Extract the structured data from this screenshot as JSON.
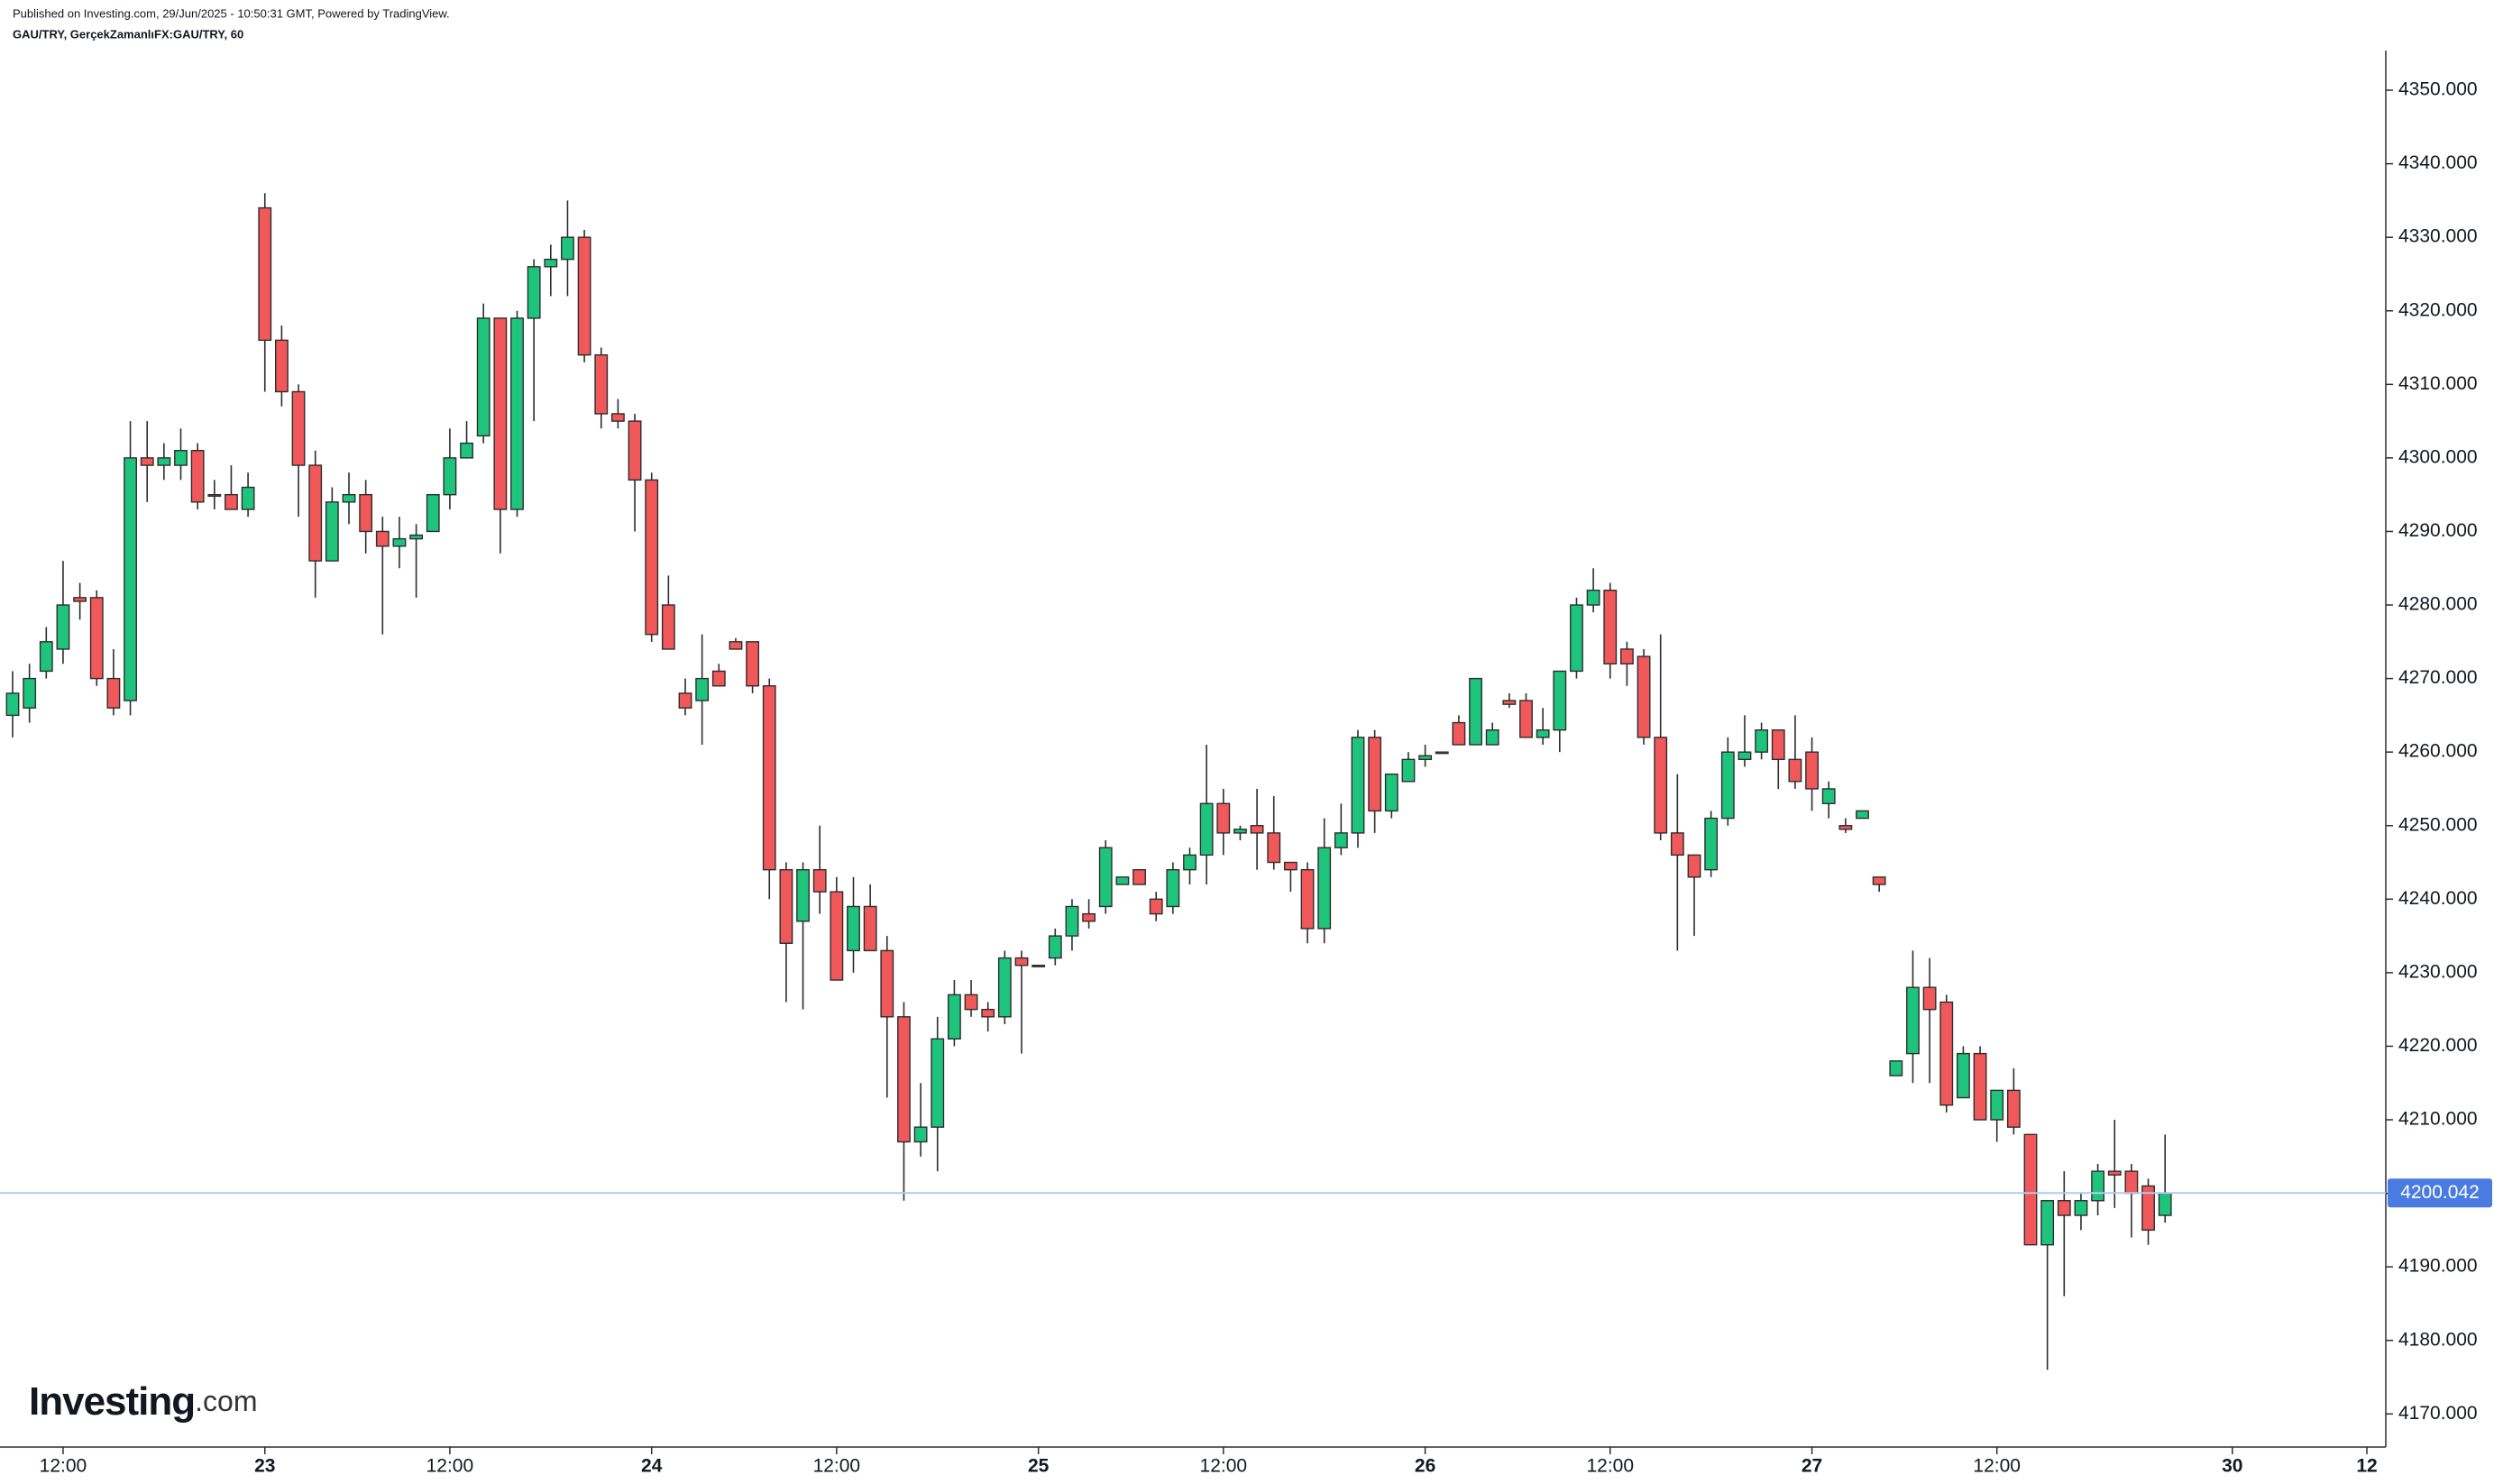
{
  "chart_data": {
    "type": "candlestick",
    "source": "Published on Investing.com, 29/Jun/2025 - 10:50:31 GMT, Powered by TradingView.",
    "title": "GAU/TRY, GerçekZamanlıFX:GAU/TRY, 60",
    "logo": {
      "name": "Investing",
      "suffix": ".com"
    },
    "up_color": "#1fc47c",
    "down_color": "#f0585a",
    "border_color": "#2d2d2d",
    "last_price": {
      "value": 4200.042,
      "label": "4200.042",
      "color": "#4a7be0",
      "line_color": "#b3c9ef"
    },
    "ylim": [
      4165.5,
      4355.4
    ],
    "yticks": [
      {
        "value": 4170,
        "label": "4170.000"
      },
      {
        "value": 4180,
        "label": "4180.000"
      },
      {
        "value": 4190,
        "label": "4190.000"
      },
      {
        "value": 4200,
        "label": "4200.000"
      },
      {
        "value": 4210,
        "label": "4210.000"
      },
      {
        "value": 4220,
        "label": "4220.000"
      },
      {
        "value": 4230,
        "label": "4230.000"
      },
      {
        "value": 4240,
        "label": "4240.000"
      },
      {
        "value": 4250,
        "label": "4250.000"
      },
      {
        "value": 4260,
        "label": "4260.000"
      },
      {
        "value": 4270,
        "label": "4270.000"
      },
      {
        "value": 4280,
        "label": "4280.000"
      },
      {
        "value": 4290,
        "label": "4290.000"
      },
      {
        "value": 4300,
        "label": "4300.000"
      },
      {
        "value": 4310,
        "label": "4310.000"
      },
      {
        "value": 4320,
        "label": "4320.000"
      },
      {
        "value": 4330,
        "label": "4330.000"
      },
      {
        "value": 4340,
        "label": "4340.000"
      },
      {
        "value": 4350,
        "label": "4350.000"
      }
    ],
    "categories": [
      null,
      null,
      null,
      "12:00",
      null,
      null,
      null,
      null,
      null,
      null,
      null,
      null,
      null,
      null,
      null,
      "23",
      null,
      null,
      null,
      null,
      null,
      null,
      null,
      null,
      null,
      null,
      "12:00",
      null,
      null,
      null,
      null,
      null,
      null,
      null,
      null,
      null,
      null,
      null,
      "24",
      null,
      null,
      null,
      null,
      null,
      null,
      null,
      null,
      null,
      null,
      "12:00",
      null,
      null,
      null,
      null,
      null,
      null,
      null,
      null,
      null,
      null,
      null,
      "25",
      null,
      null,
      null,
      null,
      null,
      null,
      null,
      null,
      null,
      null,
      "12:00",
      null,
      null,
      null,
      null,
      null,
      null,
      null,
      null,
      null,
      null,
      null,
      "26",
      null,
      null,
      null,
      null,
      null,
      null,
      null,
      null,
      null,
      null,
      "12:00",
      null,
      null,
      null,
      null,
      null,
      null,
      null,
      null,
      null,
      null,
      null,
      "27",
      null,
      null,
      null,
      null,
      null,
      null,
      null,
      null,
      null,
      null,
      "12:00",
      null,
      null,
      null,
      null,
      null,
      null,
      null,
      null,
      null,
      null,
      null,
      null,
      null,
      "30",
      null,
      null,
      null,
      null,
      null,
      null,
      null,
      "12"
    ],
    "open": [
      4265,
      4266,
      4271,
      4274,
      4281,
      4281,
      4270,
      4267,
      4300,
      4299,
      4299,
      4301,
      4295,
      4295,
      4293,
      4334,
      4316,
      4309,
      4299,
      4286,
      4294,
      4295,
      4290,
      4288,
      4289,
      4290,
      4295,
      4300,
      4303,
      4319,
      4293,
      4319,
      4326,
      4327,
      4330,
      4314,
      4306,
      4305,
      4297,
      4280,
      4268,
      4267,
      4271,
      4275,
      4275,
      4269,
      4244,
      4237,
      4244,
      4241,
      4233,
      4239,
      4233,
      4224,
      4207,
      4209,
      4221,
      4227,
      4225,
      4224,
      4232,
      4231,
      4232,
      4235,
      4238,
      4239,
      4242,
      4244,
      4240,
      4239,
      4244,
      4246,
      4253,
      4249,
      4250,
      4249,
      4245,
      4244,
      4236,
      4247,
      4249,
      4262,
      4252,
      4256,
      4259,
      4260,
      4264,
      4261,
      4261,
      4267,
      4267,
      4262,
      4263,
      4271,
      4280,
      4282,
      4274,
      4273,
      4262,
      4249,
      4246,
      4244,
      4251,
      4259,
      4260,
      4263,
      4259,
      4260,
      4253,
      4250,
      4251,
      4243,
      4216,
      4219,
      4228,
      4226,
      4213,
      4219,
      4210,
      4214,
      4208,
      4193,
      4199,
      4197,
      4199,
      4203,
      4203,
      4201,
      4197,
      null,
      null,
      null,
      null,
      null,
      null,
      null,
      null,
      null,
      null,
      null,
      null
    ],
    "high": [
      4271,
      4272,
      4277,
      4286,
      4283,
      4282,
      4274,
      4305,
      4305,
      4302,
      4304,
      4302,
      4297,
      4299,
      4298,
      4336,
      4318,
      4310,
      4301,
      4296,
      4298,
      4297,
      4292,
      4292,
      4291,
      4295,
      4304,
      4305,
      4321,
      4319,
      4320,
      4327,
      4329,
      4335,
      4331,
      4315,
      4308,
      4306,
      4298,
      4284,
      4270,
      4276,
      4272,
      4275.5,
      4275,
      4270,
      4245,
      4245,
      4250,
      4243,
      4243,
      4242,
      4235,
      4226,
      4215,
      4224,
      4229,
      4229,
      4226,
      4233,
      4233,
      4231,
      4236,
      4240,
      4240,
      4248,
      4243,
      4244,
      4241,
      4245,
      4247,
      4261,
      4255,
      4250,
      4255,
      4254,
      4245,
      4245,
      4251,
      4253,
      4263,
      4263,
      4257,
      4260,
      4261,
      4260,
      4265,
      4270,
      4264,
      4268,
      4268,
      4266,
      4271,
      4281,
      4285,
      4283,
      4275,
      4274,
      4276,
      4257,
      4246,
      4252,
      4262,
      4265,
      4264,
      4263,
      4265,
      4262,
      4256,
      4251,
      4252,
      4243,
      4218,
      4233,
      4232,
      4227,
      4220,
      4220,
      4214,
      4217,
      4208,
      4199,
      4203,
      4200,
      4204,
      4210,
      4204,
      4202,
      4208,
      null,
      null,
      null,
      null,
      null,
      null,
      null,
      null,
      null,
      null,
      null,
      null
    ],
    "low": [
      4262,
      4264,
      4270,
      4272,
      4278,
      4269,
      4265,
      4265,
      4294,
      4297,
      4297,
      4293,
      4293,
      4293,
      4292,
      4309,
      4307,
      4292,
      4281,
      4286,
      4291,
      4287,
      4276,
      4285,
      4281,
      4290,
      4293,
      4300,
      4302,
      4287,
      4292,
      4305,
      4322,
      4322,
      4313,
      4304,
      4304,
      4290,
      4275,
      4274,
      4265,
      4261,
      4269,
      4274,
      4268,
      4240,
      4226,
      4225,
      4238,
      4229,
      4230,
      4233,
      4213,
      4199,
      4205,
      4203,
      4220,
      4224,
      4222,
      4223,
      4219,
      4231,
      4231,
      4233,
      4236,
      4238,
      4242,
      4242,
      4237,
      4238,
      4242,
      4242,
      4246,
      4248,
      4244,
      4244,
      4241,
      4234,
      4234,
      4246,
      4247,
      4249,
      4251,
      4256,
      4258,
      4260,
      4261,
      4261,
      4261,
      4266,
      4262,
      4261,
      4260,
      4270,
      4279,
      4270,
      4269,
      4261,
      4248,
      4233,
      4235,
      4243,
      4250,
      4258,
      4259,
      4255,
      4255,
      4252,
      4251,
      4249,
      4251,
      4241,
      4216,
      4215,
      4215,
      4211,
      4213,
      4210,
      4207,
      4208,
      4193,
      4176,
      4186,
      4195,
      4197,
      4198,
      4194,
      4193,
      4196,
      null,
      null,
      null,
      null,
      null,
      null,
      null,
      null,
      null,
      null,
      null,
      null
    ],
    "close": [
      4268,
      4270,
      4275,
      4280,
      4280.5,
      4270,
      4266,
      4300,
      4299,
      4300,
      4301,
      4294,
      4294.8,
      4293,
      4296,
      4316,
      4309,
      4299,
      4286,
      4294,
      4295,
      4290,
      4288,
      4289,
      4289.5,
      4295,
      4300,
      4302,
      4319,
      4293,
      4319,
      4326,
      4327,
      4330,
      4314,
      4306,
      4305,
      4297,
      4276,
      4274,
      4266,
      4270,
      4269,
      4274,
      4269,
      4244,
      4234,
      4244,
      4241,
      4229,
      4239,
      4233,
      4224,
      4207,
      4209,
      4221,
      4227,
      4225,
      4224,
      4232,
      4231,
      4231,
      4235,
      4239,
      4237,
      4247,
      4243,
      4242,
      4238,
      4244,
      4246,
      4253,
      4249,
      4249.5,
      4249,
      4245,
      4244,
      4236,
      4247,
      4249,
      4262,
      4252,
      4257,
      4259,
      4259.5,
      4260,
      4261,
      4270,
      4263,
      4266.5,
      4262,
      4263,
      4271,
      4280,
      4282,
      4272,
      4272,
      4262,
      4249,
      4246,
      4243,
      4251,
      4260,
      4260,
      4263,
      4259,
      4256,
      4255,
      4255,
      4249.5,
      4252,
      4242,
      4218,
      4228,
      4225,
      4212,
      4219,
      4210,
      4214,
      4209,
      4193,
      4199,
      4197,
      4199,
      4203,
      4202.5,
      4200,
      4195,
      4200,
      null,
      null,
      null,
      null,
      null,
      null,
      null,
      null,
      null,
      null,
      null,
      null
    ]
  }
}
